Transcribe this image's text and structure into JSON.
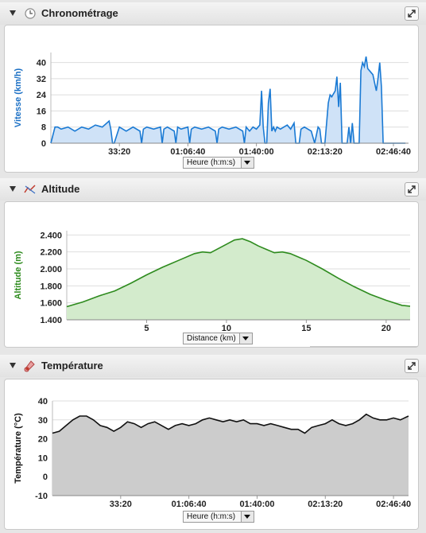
{
  "panels": [
    {
      "title": "Chronométrage",
      "icon": "clock-icon",
      "select": "Heure (h:m:s)"
    },
    {
      "title": "Altitude",
      "icon": "altitude-icon",
      "select": "Distance (km)"
    },
    {
      "title": "Température",
      "icon": "thermometer-icon",
      "select": "Heure (h:m:s)"
    }
  ],
  "colors": {
    "speed": "#1a7ad4",
    "speed_fill": "#cfe2f7",
    "altitude": "#2e8b1e",
    "altitude_fill": "#d3ebcc",
    "temp": "#111111",
    "temp_fill": "#cccccc"
  },
  "chart_data": [
    {
      "type": "area",
      "ylabel": "Vitesse (km/h)",
      "ylim": [
        0,
        45
      ],
      "yticks": [
        0,
        8,
        16,
        24,
        32,
        40
      ],
      "xlim": [
        0,
        10440
      ],
      "xticks": [
        2000,
        4000,
        6000,
        8000,
        10000
      ],
      "xtick_labels": [
        "33:20",
        "01:06:40",
        "01:40:00",
        "02:13:20",
        "02:46:40"
      ],
      "grid": true,
      "series": [
        {
          "x": [
            0,
            120,
            200,
            300,
            500,
            700,
            900,
            1100,
            1300,
            1500,
            1700,
            1750,
            1800,
            1850,
            2000,
            2200,
            2400,
            2600,
            2650,
            2700,
            2800,
            3000,
            3200,
            3250,
            3300,
            3400,
            3600,
            3650,
            3700,
            3800,
            4000,
            4050,
            4100,
            4200,
            4400,
            4600,
            4800,
            4850,
            4900,
            5000,
            5200,
            5400,
            5600,
            5650,
            5700,
            5800,
            5900,
            6000,
            6100,
            6150,
            6200,
            6250,
            6300,
            6350,
            6400,
            6450,
            6500,
            6550,
            6600,
            6700,
            6800,
            6900,
            7000,
            7100,
            7150,
            7200,
            7250,
            7300,
            7400,
            7600,
            7700,
            7800,
            7850,
            7900,
            7950,
            8000,
            8100,
            8150,
            8200,
            8300,
            8350,
            8400,
            8450,
            8500,
            8550,
            8600,
            8650,
            8700,
            8750,
            8800,
            8850,
            8900,
            8950,
            9000,
            9050,
            9100,
            9150,
            9200,
            9250,
            9300,
            9350,
            9400,
            9450,
            9500,
            9550,
            9600,
            9650,
            9700,
            9750,
            9800,
            9850,
            9900,
            9950,
            10000,
            10050,
            10100,
            10150,
            10200,
            10250,
            10300,
            10350
          ],
          "y": [
            0,
            8,
            8,
            7,
            8,
            6,
            8,
            7,
            9,
            8,
            11,
            7,
            0,
            0,
            8,
            6,
            8,
            6,
            0,
            7,
            8,
            7,
            8,
            0,
            7,
            8,
            6,
            0,
            8,
            7,
            8,
            0,
            7,
            8,
            7,
            8,
            6,
            0,
            7,
            8,
            7,
            8,
            6,
            0,
            8,
            6,
            8,
            7,
            9,
            26,
            8,
            0,
            0,
            20,
            27,
            6,
            8,
            6,
            8,
            7,
            8,
            9,
            7,
            10,
            0,
            0,
            0,
            7,
            8,
            6,
            0,
            8,
            7,
            0,
            0,
            0,
            20,
            24,
            23,
            26,
            33,
            18,
            30,
            0,
            0,
            0,
            0,
            8,
            0,
            10,
            0,
            0,
            0,
            0,
            36,
            40,
            38,
            43,
            37,
            36,
            35,
            34,
            30,
            26,
            32,
            40,
            28,
            0,
            0,
            0,
            0,
            0,
            0,
            0,
            0,
            0,
            0,
            0,
            0,
            0,
            0
          ]
        }
      ]
    },
    {
      "type": "area",
      "ylabel": "Altitude (m)",
      "xlim": [
        0,
        21.5
      ],
      "ylim": [
        1400,
        2450
      ],
      "yticks": [
        1400,
        1600,
        1800,
        2000,
        2200,
        2400
      ],
      "ytick_labels": [
        "1.400",
        "1.600",
        "1.800",
        "2.000",
        "2.200",
        "2.400"
      ],
      "xticks": [
        5,
        10,
        15,
        20
      ],
      "xtick_labels": [
        "5",
        "10",
        "15",
        "20"
      ],
      "grid": true,
      "series": [
        {
          "x": [
            0,
            1,
            2,
            3,
            4,
            5,
            6,
            6.5,
            7,
            8,
            8.5,
            9,
            10,
            10.5,
            11,
            11.5,
            12,
            12.5,
            13,
            13.5,
            14,
            15,
            16,
            17,
            18,
            19,
            20,
            21,
            21.5
          ],
          "y": [
            1555,
            1610,
            1680,
            1740,
            1830,
            1930,
            2020,
            2060,
            2100,
            2180,
            2200,
            2190,
            2290,
            2340,
            2355,
            2320,
            2270,
            2230,
            2190,
            2200,
            2180,
            2100,
            2000,
            1890,
            1790,
            1700,
            1630,
            1570,
            1560
          ]
        }
      ]
    },
    {
      "type": "area",
      "ylabel": "Température (°C)",
      "ylim": [
        -10,
        40
      ],
      "yticks": [
        -10,
        0,
        10,
        20,
        30,
        40
      ],
      "xlim": [
        0,
        10440
      ],
      "xticks": [
        2000,
        4000,
        6000,
        8000,
        10000
      ],
      "xtick_labels": [
        "33:20",
        "01:06:40",
        "01:40:00",
        "02:13:20",
        "02:46:40"
      ],
      "grid": true,
      "series": [
        {
          "x": [
            0,
            200,
            400,
            600,
            800,
            1000,
            1200,
            1400,
            1600,
            1800,
            2000,
            2200,
            2400,
            2600,
            2800,
            3000,
            3200,
            3400,
            3600,
            3800,
            4000,
            4200,
            4400,
            4600,
            4800,
            5000,
            5200,
            5400,
            5600,
            5800,
            6000,
            6200,
            6400,
            6600,
            6800,
            7000,
            7200,
            7400,
            7600,
            7800,
            8000,
            8200,
            8400,
            8600,
            8800,
            9000,
            9200,
            9400,
            9600,
            9800,
            10000,
            10200,
            10440
          ],
          "y": [
            23,
            24,
            27,
            30,
            32,
            32,
            30,
            27,
            26,
            24,
            26,
            29,
            28,
            26,
            28,
            29,
            27,
            25,
            27,
            28,
            27,
            28,
            30,
            31,
            30,
            29,
            30,
            29,
            30,
            28,
            28,
            27,
            28,
            27,
            26,
            25,
            25,
            23,
            26,
            27,
            28,
            30,
            28,
            27,
            28,
            30,
            33,
            31,
            30,
            30,
            31,
            30,
            32
          ]
        }
      ]
    }
  ]
}
